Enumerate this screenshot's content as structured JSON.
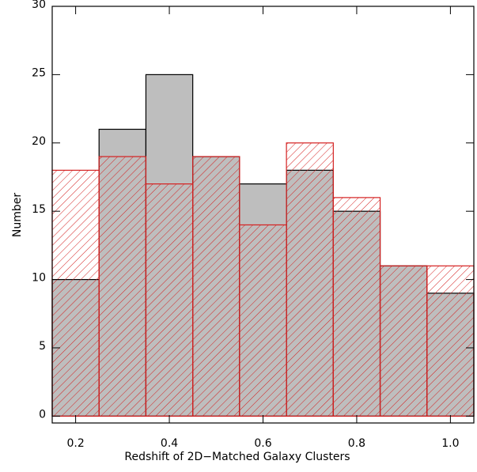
{
  "chart_data": {
    "type": "histogram",
    "xlabel": "Redshift of 2D−Matched Galaxy Clusters",
    "ylabel": "Number",
    "bins": [
      0.15,
      0.25,
      0.35,
      0.45,
      0.55,
      0.65,
      0.75,
      0.85,
      0.95,
      1.05
    ],
    "series": [
      {
        "color": "#bebebe",
        "values": [
          10,
          21,
          25,
          19,
          17,
          18,
          15,
          11,
          9
        ]
      },
      {
        "color": "#d42020",
        "values": [
          18,
          19,
          17,
          19,
          14,
          20,
          16,
          11,
          11
        ]
      }
    ],
    "xlim": [
      0.15,
      1.05
    ],
    "xticks": [
      0.2,
      0.4,
      0.6,
      0.8,
      {
        "value": 1,
        "label": "1.0"
      }
    ],
    "ylim": [
      -0.5,
      30
    ],
    "yticks": [
      0,
      5,
      10,
      15,
      20,
      25,
      30
    ]
  }
}
